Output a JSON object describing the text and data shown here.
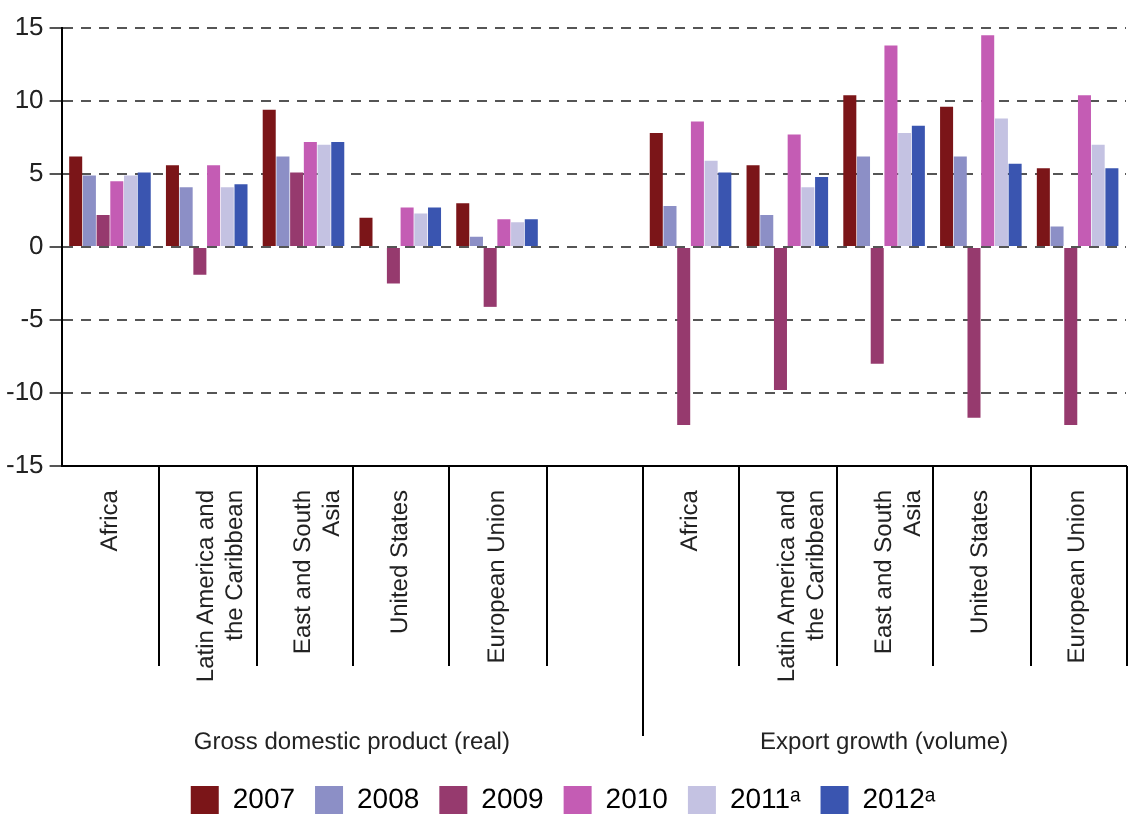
{
  "chart_data": {
    "type": "bar",
    "categories": [
      "Africa",
      "Latin America and the Caribbean",
      "East and South Asia",
      "United States",
      "European Union",
      null,
      "Africa",
      "Latin America and the Caribbean",
      "East and South Asia",
      "United States",
      "European Union"
    ],
    "series": [
      {
        "name": "2007",
        "color": "#7b1518",
        "values": [
          6.2,
          5.6,
          9.4,
          2.0,
          3.0,
          null,
          7.8,
          5.6,
          10.4,
          9.6,
          5.4
        ]
      },
      {
        "name": "2008",
        "color": "#8c8fc6",
        "values": [
          4.9,
          4.1,
          6.2,
          0,
          0.7,
          null,
          2.8,
          2.2,
          6.2,
          6.2,
          1.4
        ]
      },
      {
        "name": "2009",
        "color": "#963a6e",
        "values": [
          2.2,
          -1.9,
          5.1,
          -2.5,
          -4.1,
          null,
          -12.2,
          -9.8,
          -8.0,
          -11.7,
          -12.2
        ]
      },
      {
        "name": "2010",
        "color": "#c45cb4",
        "values": [
          4.5,
          5.6,
          7.2,
          2.7,
          1.9,
          null,
          8.6,
          7.7,
          13.8,
          14.5,
          10.4
        ]
      },
      {
        "name": "2011ᵃ",
        "color": "#c4c2e2",
        "values": [
          4.9,
          4.1,
          7.0,
          2.3,
          1.7,
          null,
          5.9,
          4.1,
          7.8,
          8.8,
          7.0
        ]
      },
      {
        "name": "2012ᵃ",
        "color": "#3a55b0",
        "values": [
          5.1,
          4.3,
          7.2,
          2.7,
          1.9,
          null,
          5.1,
          4.8,
          8.3,
          5.7,
          5.4
        ]
      }
    ],
    "annotations": [
      "Gross domestic product (real)",
      "Export growth (volume)"
    ],
    "ylim": [
      -15,
      15
    ],
    "yticks": [
      -15,
      -10,
      -5,
      0,
      5,
      10,
      15
    ],
    "grid": "y",
    "legend": "bottom"
  }
}
